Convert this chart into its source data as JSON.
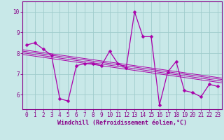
{
  "title": "",
  "xlabel": "Windchill (Refroidissement éolien,°C)",
  "ylabel": "",
  "bg_color": "#c8e8e8",
  "grid_color": "#a0cccc",
  "line_color": "#aa00aa",
  "spine_color": "#880088",
  "x_data": [
    0,
    1,
    2,
    3,
    4,
    5,
    6,
    7,
    8,
    9,
    10,
    11,
    12,
    13,
    14,
    15,
    16,
    17,
    18,
    19,
    20,
    21,
    22,
    23
  ],
  "y_data": [
    8.4,
    8.5,
    8.2,
    7.9,
    5.8,
    5.7,
    7.4,
    7.5,
    7.5,
    7.4,
    8.1,
    7.5,
    7.3,
    10.0,
    8.8,
    8.8,
    5.5,
    7.1,
    7.6,
    6.2,
    6.1,
    5.9,
    6.5,
    6.4
  ],
  "ylim": [
    5.3,
    10.5
  ],
  "xlim": [
    -0.5,
    23.5
  ],
  "yticks": [
    6,
    7,
    8,
    9,
    10
  ],
  "xticks": [
    0,
    1,
    2,
    3,
    4,
    5,
    6,
    7,
    8,
    9,
    10,
    11,
    12,
    13,
    14,
    15,
    16,
    17,
    18,
    19,
    20,
    21,
    22,
    23
  ],
  "tick_fontsize": 5.5,
  "xlabel_fontsize": 6.0,
  "marker_size": 2.5,
  "line_width": 0.9,
  "trend_offsets": [
    -0.08,
    0.0,
    0.08,
    0.15
  ]
}
